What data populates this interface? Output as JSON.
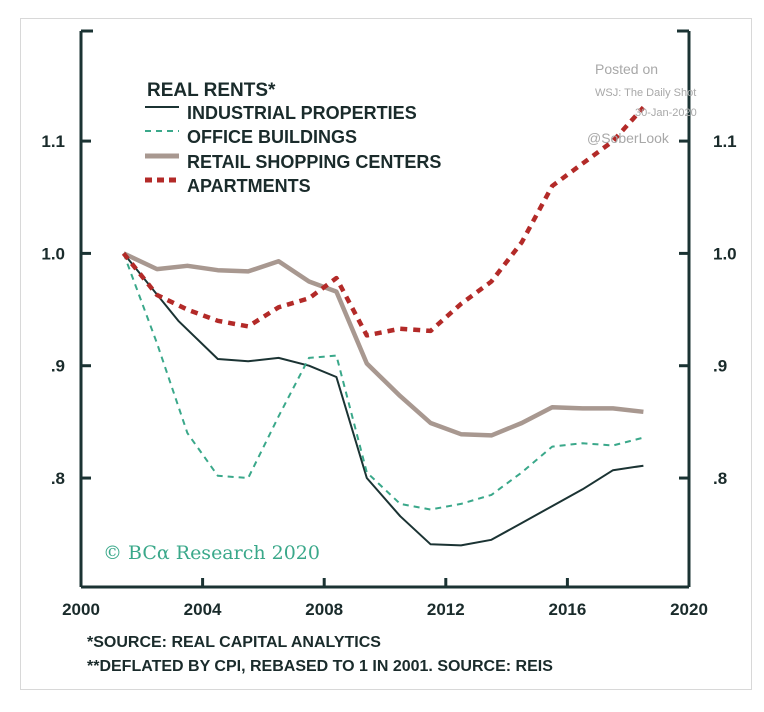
{
  "chart_data": {
    "type": "line",
    "title": "REAL RENTS*",
    "xlabel": "",
    "ylabel": "",
    "xlim": [
      2000,
      2020
    ],
    "ylim": [
      0.703,
      1.198
    ],
    "x_ticks": [
      2000,
      2004,
      2008,
      2012,
      2016,
      2020
    ],
    "x_tick_labels": [
      "2000",
      "2004",
      "2008",
      "2012",
      "2016",
      "2020"
    ],
    "y_ticks": [
      0.8,
      0.9,
      1.0,
      1.1
    ],
    "y_tick_labels": [
      ".8",
      ".9",
      "1.0",
      "1.1"
    ],
    "grid": false,
    "legend_position": "top-left",
    "series": [
      {
        "name": "INDUSTRIAL PROPERTIES",
        "color": "#1b3333",
        "style": "solid",
        "x": [
          2001.4,
          2003.2,
          2004.5,
          2005.5,
          2006.5,
          2007.5,
          2008.4,
          2009.4,
          2010.5,
          2011.5,
          2012.5,
          2013.5,
          2014.5,
          2015.5,
          2016.5,
          2017.5,
          2018.5
        ],
        "values": [
          1.0,
          0.94,
          0.906,
          0.904,
          0.907,
          0.9,
          0.89,
          0.8,
          0.766,
          0.741,
          0.74,
          0.745,
          0.76,
          0.775,
          0.79,
          0.807,
          0.811
        ]
      },
      {
        "name": "OFFICE BUILDINGS",
        "color": "#3aa88a",
        "style": "dashed",
        "x": [
          2001.4,
          2002.5,
          2003.5,
          2004.5,
          2005.5,
          2006.5,
          2007.5,
          2008.4,
          2009.4,
          2010.5,
          2011.5,
          2012.5,
          2013.5,
          2014.5,
          2015.5,
          2016.5,
          2017.5,
          2018.5
        ],
        "values": [
          1.0,
          0.92,
          0.84,
          0.802,
          0.8,
          0.855,
          0.907,
          0.909,
          0.805,
          0.777,
          0.772,
          0.777,
          0.785,
          0.805,
          0.828,
          0.831,
          0.829,
          0.836
        ]
      },
      {
        "name": "RETAIL SHOPPING CENTERS",
        "color": "#a89890",
        "style": "solid-thick",
        "x": [
          2001.4,
          2002.5,
          2003.5,
          2004.5,
          2005.5,
          2006.5,
          2007.5,
          2008.4,
          2009.4,
          2010.5,
          2011.5,
          2012.5,
          2013.5,
          2014.5,
          2015.5,
          2016.5,
          2017.5,
          2018.5
        ],
        "values": [
          1.0,
          0.986,
          0.989,
          0.985,
          0.984,
          0.993,
          0.975,
          0.966,
          0.902,
          0.873,
          0.849,
          0.839,
          0.838,
          0.849,
          0.863,
          0.862,
          0.862,
          0.859
        ]
      },
      {
        "name": "APARTMENTS",
        "color": "#b32a28",
        "style": "dotted-thick",
        "x": [
          2001.4,
          2002.5,
          2003.5,
          2004.5,
          2005.5,
          2006.5,
          2007.5,
          2008.4,
          2009.4,
          2010.5,
          2011.5,
          2012.5,
          2013.5,
          2014.5,
          2015.5,
          2016.5,
          2017.5,
          2018.5
        ],
        "values": [
          1.0,
          0.963,
          0.95,
          0.94,
          0.935,
          0.952,
          0.96,
          0.978,
          0.927,
          0.933,
          0.931,
          0.955,
          0.975,
          1.01,
          1.06,
          1.08,
          1.1,
          1.13
        ]
      }
    ]
  },
  "watermark": {
    "line1": "Posted on",
    "line2": "WSJ: The Daily Shot",
    "line3": "30-Jan-2020",
    "line4": "@SoberLook"
  },
  "credit": "© BCα Research 2020",
  "footnotes": [
    "*SOURCE: REAL CAPITAL ANALYTICS",
    "**DEFLATED BY CPI, REBASED TO 1 IN 2001. SOURCE: REIS"
  ],
  "colors": {
    "axis": "#1b3333",
    "text": "#1a2b2b"
  }
}
